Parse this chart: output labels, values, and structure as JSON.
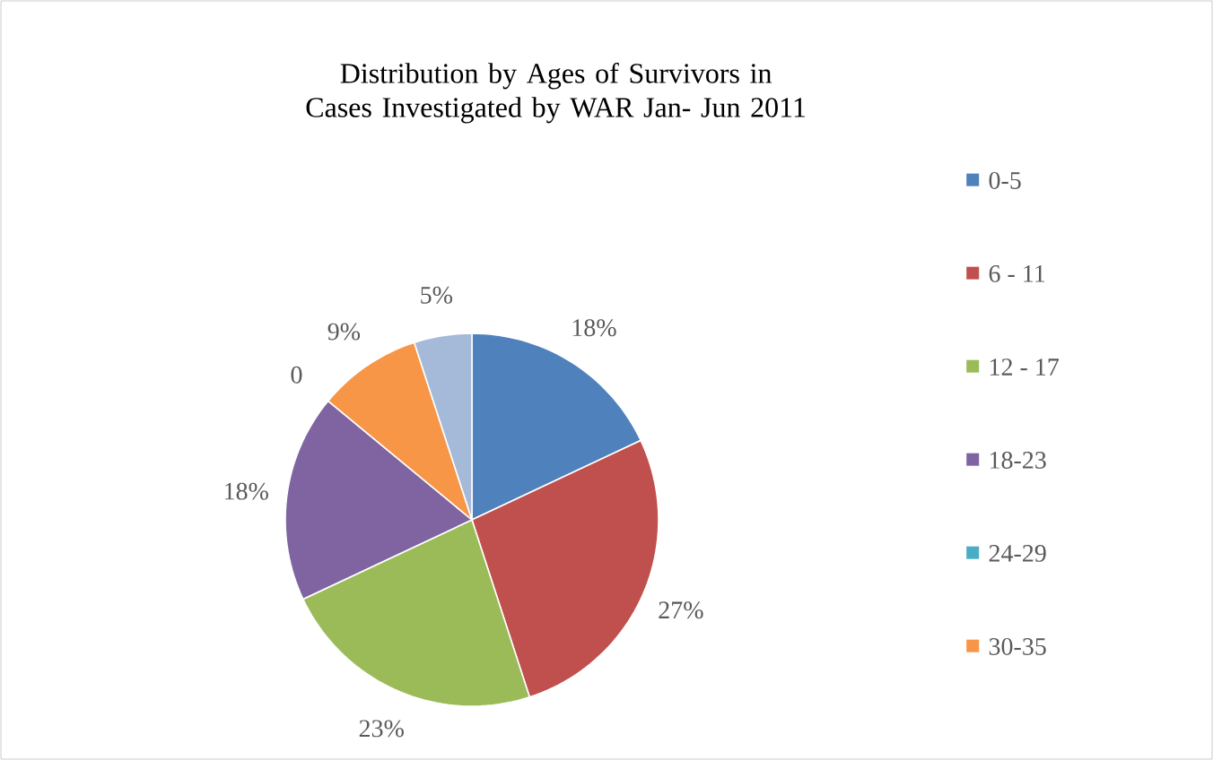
{
  "chart_data": {
    "type": "pie",
    "title": "Distribution by Ages of Survivors in Cases Investigated by WAR Jan- Jun 2011",
    "categories": [
      "0-5",
      "6 - 11",
      "12 - 17",
      "18-23",
      "24-29",
      "30-35",
      null
    ],
    "values": [
      18,
      27,
      23,
      18,
      0,
      9,
      5
    ],
    "value_labels": [
      "18%",
      "27%",
      "23%",
      "18%",
      "0",
      "9%",
      "5%"
    ],
    "colors": [
      "#4f81bd",
      "#c0504d",
      "#9bbb59",
      "#8064a2",
      "#4bacc6",
      "#f79646",
      "#a5b9d9"
    ],
    "legend": "right"
  }
}
